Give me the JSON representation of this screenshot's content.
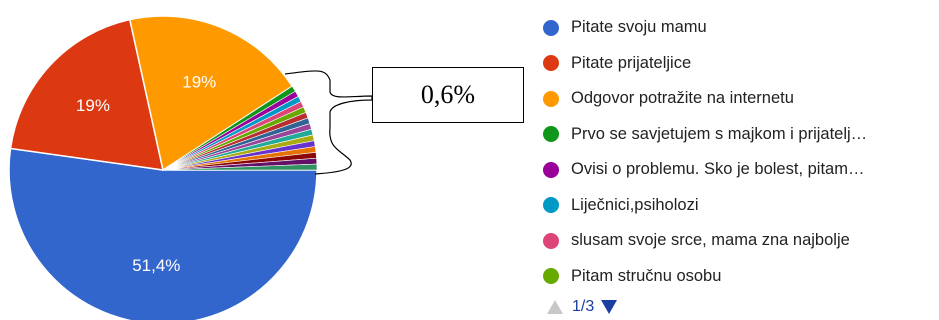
{
  "chart_data": {
    "type": "pie",
    "slices": [
      {
        "label": "Pitate svoju mamu",
        "value": 51.4,
        "color": "#3366cc",
        "display": "51,4%"
      },
      {
        "label": "Pitate prijateljice",
        "value": 19,
        "color": "#dc3912",
        "display": "19%"
      },
      {
        "label": "Odgovor potražite na internetu",
        "value": 19,
        "color": "#ff9900",
        "display": "19%"
      },
      {
        "label": "Prvo se savjetujem s majkom i prijatelj…",
        "value": 0.6,
        "color": "#109618"
      },
      {
        "label": "Ovisi o problemu. Sko je bolest, pitam…",
        "value": 0.6,
        "color": "#990099"
      },
      {
        "label": "Liječnici,psiholozi",
        "value": 0.6,
        "color": "#0099c6"
      },
      {
        "label": "slusam svoje srce, mama zna najbolje",
        "value": 0.6,
        "color": "#dd4477"
      },
      {
        "label": "Pitam stručnu osobu",
        "value": 0.6,
        "color": "#66aa00"
      },
      {
        "value": 0.6,
        "color": "#b82e2e"
      },
      {
        "value": 0.6,
        "color": "#316395"
      },
      {
        "value": 0.6,
        "color": "#994499"
      },
      {
        "value": 0.6,
        "color": "#22aa99"
      },
      {
        "value": 0.6,
        "color": "#aaaa11"
      },
      {
        "value": 0.6,
        "color": "#6633cc"
      },
      {
        "value": 0.6,
        "color": "#e67300"
      },
      {
        "value": 0.6,
        "color": "#8b0707"
      },
      {
        "value": 0.6,
        "color": "#651067"
      },
      {
        "value": 0.6,
        "color": "#329262"
      }
    ],
    "callout": "0,6%"
  },
  "legend": {
    "items": [
      {
        "label": "Pitate svoju mamu",
        "color": "#3366cc"
      },
      {
        "label": "Pitate prijateljice",
        "color": "#dc3912"
      },
      {
        "label": "Odgovor potražite na internetu",
        "color": "#ff9900"
      },
      {
        "label": "Prvo se savjetujem s majkom i prijatelj…",
        "color": "#109618"
      },
      {
        "label": "Ovisi o problemu. Sko je bolest, pitam…",
        "color": "#990099"
      },
      {
        "label": "Liječnici,psiholozi",
        "color": "#0099c6"
      },
      {
        "label": "slusam svoje srce, mama zna najbolje",
        "color": "#dd4477"
      },
      {
        "label": "Pitam stručnu osobu",
        "color": "#66aa00"
      }
    ]
  },
  "pager": {
    "text": "1/3",
    "prev_icon": "triangle-up-icon",
    "next_icon": "triangle-down-icon",
    "prev_color": "#c8c8c8",
    "next_color": "#1a3fa0"
  }
}
